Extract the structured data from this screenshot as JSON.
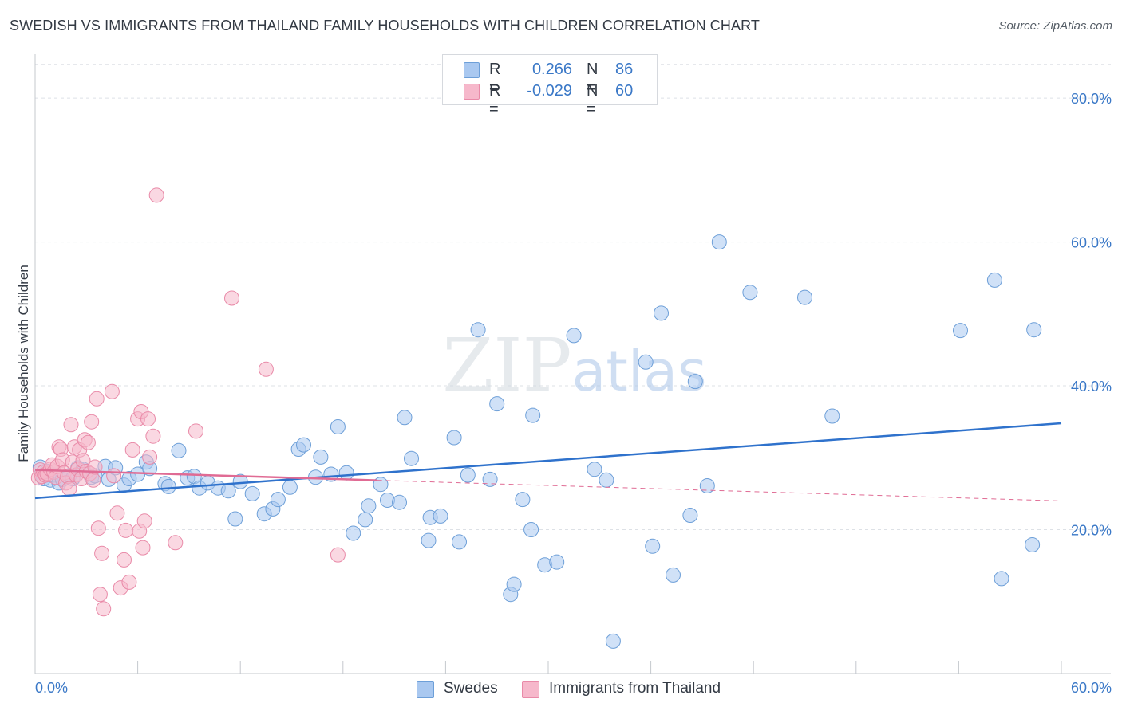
{
  "title": "SWEDISH VS IMMIGRANTS FROM THAILAND FAMILY HOUSEHOLDS WITH CHILDREN CORRELATION CHART",
  "source": "Source: ZipAtlas.com",
  "watermark": "ZIPatlas",
  "colors": {
    "swedes_fill": "#a9c8f0",
    "swedes_stroke": "#6d9fd8",
    "swedes_line": "#2f72cc",
    "thai_fill": "#f6b8cb",
    "thai_stroke": "#e98aa8",
    "thai_line": "#e06b94",
    "axis_text": "#3a78c7",
    "grid": "#dde1e6"
  },
  "legend": {
    "rows": [
      {
        "r_label": "R =",
        "r_value": "0.266",
        "n_label": "N =",
        "n_value": "86"
      },
      {
        "r_label": "R =",
        "r_value": "-0.029",
        "n_label": "N =",
        "n_value": "60"
      }
    ]
  },
  "bottom_legend": [
    "Swedes",
    "Immigrants from Thailand"
  ],
  "chart_data": {
    "type": "scatter",
    "title": "SWEDISH VS IMMIGRANTS FROM THAILAND FAMILY HOUSEHOLDS WITH CHILDREN CORRELATION CHART",
    "xlabel": "",
    "ylabel": "Family Households with Children",
    "xlim": [
      0,
      60
    ],
    "ylim": [
      0,
      85
    ],
    "x_tick_labels": [
      "0.0%",
      "60.0%"
    ],
    "y_tick_labels": [
      "20.0%",
      "40.0%",
      "60.0%",
      "80.0%"
    ],
    "y_ticks": [
      20,
      40,
      60,
      80
    ],
    "grid": true,
    "series": [
      {
        "name": "Swedes",
        "r": 0.266,
        "n": 86,
        "trend": {
          "x": [
            0,
            60
          ],
          "y": [
            24.4,
            34.8
          ]
        },
        "points": [
          [
            0.3,
            28.7
          ],
          [
            0.5,
            27.1
          ],
          [
            0.7,
            28.1
          ],
          [
            0.9,
            26.9
          ],
          [
            1.1,
            27.6
          ],
          [
            1.4,
            26.5
          ],
          [
            1.6,
            27.0
          ],
          [
            2.0,
            27.5
          ],
          [
            2.2,
            27.1
          ],
          [
            2.5,
            28.6
          ],
          [
            2.8,
            28.4
          ],
          [
            3.3,
            27.3
          ],
          [
            3.5,
            27.5
          ],
          [
            4.1,
            28.8
          ],
          [
            4.3,
            27.0
          ],
          [
            4.7,
            28.6
          ],
          [
            5.2,
            26.2
          ],
          [
            5.5,
            27.1
          ],
          [
            6.0,
            27.7
          ],
          [
            6.5,
            29.4
          ],
          [
            6.7,
            28.5
          ],
          [
            7.6,
            26.4
          ],
          [
            7.8,
            26.0
          ],
          [
            8.4,
            31.0
          ],
          [
            8.9,
            27.2
          ],
          [
            9.3,
            27.4
          ],
          [
            9.6,
            25.8
          ],
          [
            10.1,
            26.5
          ],
          [
            10.7,
            25.8
          ],
          [
            11.3,
            25.4
          ],
          [
            11.7,
            21.5
          ],
          [
            12.0,
            26.7
          ],
          [
            12.7,
            25.0
          ],
          [
            13.4,
            22.2
          ],
          [
            13.9,
            22.9
          ],
          [
            14.2,
            24.2
          ],
          [
            14.9,
            25.9
          ],
          [
            15.4,
            31.2
          ],
          [
            15.7,
            31.8
          ],
          [
            16.4,
            27.3
          ],
          [
            16.7,
            30.1
          ],
          [
            17.3,
            27.7
          ],
          [
            17.7,
            34.3
          ],
          [
            18.2,
            27.9
          ],
          [
            18.6,
            19.5
          ],
          [
            19.3,
            21.4
          ],
          [
            19.5,
            23.3
          ],
          [
            20.2,
            26.3
          ],
          [
            20.6,
            24.1
          ],
          [
            21.3,
            23.8
          ],
          [
            21.6,
            35.6
          ],
          [
            22.0,
            29.9
          ],
          [
            23.0,
            18.5
          ],
          [
            23.1,
            21.7
          ],
          [
            23.7,
            21.9
          ],
          [
            24.5,
            32.8
          ],
          [
            24.8,
            18.3
          ],
          [
            25.3,
            27.6
          ],
          [
            25.9,
            47.8
          ],
          [
            26.6,
            27.0
          ],
          [
            27.0,
            37.5
          ],
          [
            27.8,
            11.0
          ],
          [
            28.0,
            12.4
          ],
          [
            28.5,
            24.2
          ],
          [
            29.0,
            20.0
          ],
          [
            29.1,
            35.9
          ],
          [
            29.8,
            15.1
          ],
          [
            30.5,
            15.5
          ],
          [
            31.5,
            47.0
          ],
          [
            32.7,
            28.4
          ],
          [
            33.4,
            26.9
          ],
          [
            33.8,
            4.5
          ],
          [
            35.7,
            43.3
          ],
          [
            36.1,
            17.7
          ],
          [
            36.6,
            50.1
          ],
          [
            37.3,
            13.7
          ],
          [
            38.3,
            22.0
          ],
          [
            38.6,
            40.6
          ],
          [
            39.3,
            26.1
          ],
          [
            40.0,
            60.0
          ],
          [
            41.8,
            53.0
          ],
          [
            45.0,
            52.3
          ],
          [
            46.6,
            35.8
          ],
          [
            54.1,
            47.7
          ],
          [
            56.1,
            54.7
          ],
          [
            56.5,
            13.2
          ],
          [
            58.3,
            17.9
          ],
          [
            58.4,
            47.8
          ]
        ]
      },
      {
        "name": "Immigrants from Thailand",
        "r": -0.029,
        "n": 60,
        "trend": {
          "x": [
            0,
            60
          ],
          "y": [
            28.3,
            24.0
          ]
        },
        "trend_solid_until": 20,
        "points": [
          [
            0.2,
            27.2
          ],
          [
            0.3,
            28.3
          ],
          [
            0.4,
            27.4
          ],
          [
            0.5,
            28.0
          ],
          [
            0.6,
            27.6
          ],
          [
            0.7,
            27.8
          ],
          [
            0.9,
            28.4
          ],
          [
            1.0,
            29.0
          ],
          [
            1.1,
            28.0
          ],
          [
            1.2,
            27.3
          ],
          [
            1.3,
            28.8
          ],
          [
            1.4,
            31.5
          ],
          [
            1.5,
            31.2
          ],
          [
            1.6,
            29.7
          ],
          [
            1.7,
            27.9
          ],
          [
            1.8,
            26.5
          ],
          [
            1.9,
            27.4
          ],
          [
            2.0,
            25.7
          ],
          [
            2.1,
            34.6
          ],
          [
            2.2,
            29.4
          ],
          [
            2.3,
            31.5
          ],
          [
            2.4,
            27.6
          ],
          [
            2.5,
            28.4
          ],
          [
            2.6,
            31.1
          ],
          [
            2.7,
            27.1
          ],
          [
            2.8,
            29.6
          ],
          [
            2.9,
            32.5
          ],
          [
            3.0,
            28.1
          ],
          [
            3.1,
            32.1
          ],
          [
            3.2,
            27.8
          ],
          [
            3.3,
            35.0
          ],
          [
            3.4,
            26.9
          ],
          [
            3.5,
            28.7
          ],
          [
            3.6,
            38.2
          ],
          [
            3.7,
            20.2
          ],
          [
            3.8,
            11.0
          ],
          [
            3.9,
            16.7
          ],
          [
            4.0,
            9.0
          ],
          [
            4.5,
            39.2
          ],
          [
            4.6,
            27.5
          ],
          [
            4.8,
            22.3
          ],
          [
            5.0,
            11.9
          ],
          [
            5.2,
            15.8
          ],
          [
            5.3,
            19.9
          ],
          [
            5.5,
            12.7
          ],
          [
            5.7,
            31.1
          ],
          [
            6.0,
            35.4
          ],
          [
            6.1,
            19.8
          ],
          [
            6.2,
            36.4
          ],
          [
            6.3,
            17.5
          ],
          [
            6.4,
            21.2
          ],
          [
            6.6,
            35.4
          ],
          [
            6.7,
            30.1
          ],
          [
            6.9,
            33.0
          ],
          [
            7.1,
            66.5
          ],
          [
            8.2,
            18.2
          ],
          [
            9.4,
            33.7
          ],
          [
            11.5,
            52.2
          ],
          [
            13.5,
            42.3
          ],
          [
            17.7,
            16.5
          ]
        ]
      }
    ]
  }
}
